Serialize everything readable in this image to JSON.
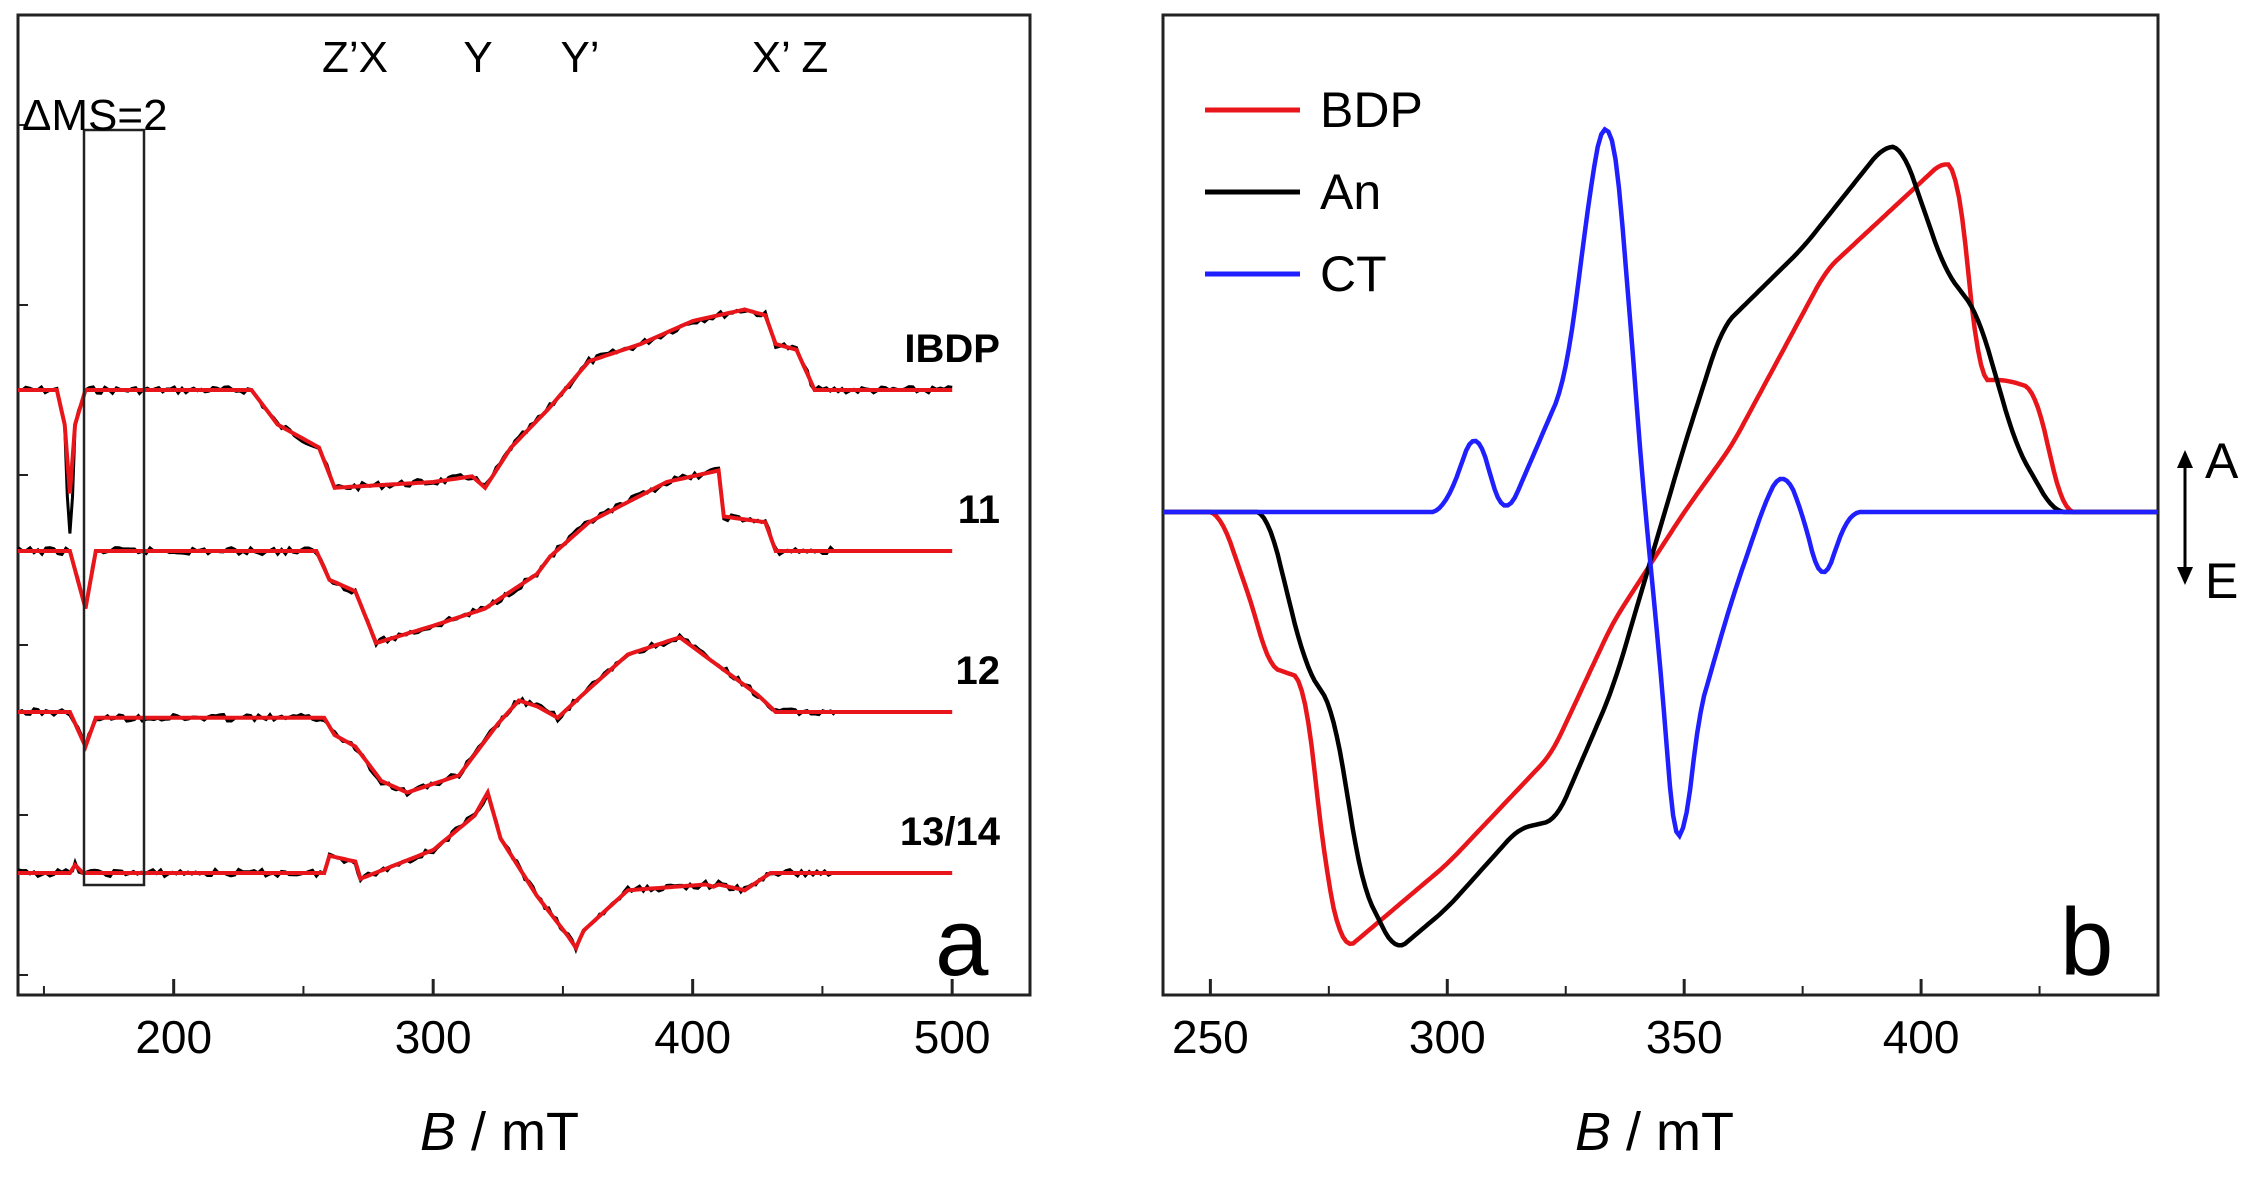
{
  "chart_data": [
    {
      "panel": "a",
      "type": "line",
      "xlabel_italic": "B",
      "xlabel_unit": " / mT",
      "xlim": [
        140,
        530
      ],
      "xticks": [
        200,
        300,
        400,
        500
      ],
      "feature_labels": [
        "Z’X",
        "Y",
        "Y’",
        "X’ Z"
      ],
      "transition_label": "ΔMS=2",
      "panel_letter": "a",
      "series": [
        {
          "name": "IBDP",
          "offset": 4.0,
          "color_exp": "#000000",
          "color_sim": "#e8161b",
          "points": [
            [
              140,
              0
            ],
            [
              155,
              0
            ],
            [
              158,
              -0.3
            ],
            [
              160,
              -0.9
            ],
            [
              162,
              -0.3
            ],
            [
              166,
              0
            ],
            [
              230,
              0
            ],
            [
              240,
              -0.3
            ],
            [
              248,
              -0.4
            ],
            [
              256,
              -0.5
            ],
            [
              262,
              -0.85
            ],
            [
              300,
              -0.8
            ],
            [
              315,
              -0.75
            ],
            [
              320,
              -0.85
            ],
            [
              330,
              -0.5
            ],
            [
              345,
              -0.15
            ],
            [
              360,
              0.25
            ],
            [
              380,
              0.4
            ],
            [
              400,
              0.6
            ],
            [
              420,
              0.7
            ],
            [
              428,
              0.65
            ],
            [
              432,
              0.4
            ],
            [
              440,
              0.35
            ],
            [
              447,
              0.0
            ],
            [
              500,
              0
            ]
          ]
        },
        {
          "name": "11",
          "offset": 2.6,
          "color_exp": "#000000",
          "color_sim": "#e8161b",
          "points": [
            [
              140,
              0
            ],
            [
              160,
              0
            ],
            [
              163,
              -0.25
            ],
            [
              166,
              -0.5
            ],
            [
              170,
              0
            ],
            [
              255,
              0
            ],
            [
              260,
              -0.25
            ],
            [
              270,
              -0.35
            ],
            [
              278,
              -0.8
            ],
            [
              300,
              -0.65
            ],
            [
              320,
              -0.5
            ],
            [
              340,
              -0.2
            ],
            [
              345,
              -0.05
            ],
            [
              360,
              0.25
            ],
            [
              390,
              0.6
            ],
            [
              410,
              0.7
            ],
            [
              412,
              0.3
            ],
            [
              428,
              0.25
            ],
            [
              432,
              0.0
            ],
            [
              500,
              0
            ]
          ]
        },
        {
          "name": "12",
          "offset": 1.2,
          "color_exp": "#000000",
          "color_sim": "#e8161b",
          "points": [
            [
              140,
              0
            ],
            [
              160,
              0
            ],
            [
              163,
              -0.15
            ],
            [
              166,
              -0.3
            ],
            [
              170,
              -0.05
            ],
            [
              258,
              -0.05
            ],
            [
              262,
              -0.2
            ],
            [
              270,
              -0.3
            ],
            [
              280,
              -0.6
            ],
            [
              290,
              -0.7
            ],
            [
              310,
              -0.55
            ],
            [
              325,
              -0.1
            ],
            [
              333,
              0.1
            ],
            [
              340,
              0.05
            ],
            [
              348,
              -0.05
            ],
            [
              360,
              0.2
            ],
            [
              375,
              0.5
            ],
            [
              395,
              0.65
            ],
            [
              410,
              0.4
            ],
            [
              425,
              0.15
            ],
            [
              432,
              0.0
            ],
            [
              500,
              0
            ]
          ]
        },
        {
          "name": "13/14",
          "offset": -0.2,
          "color_exp": "#000000",
          "color_sim": "#e8161b",
          "points": [
            [
              140,
              0
            ],
            [
              160,
              0
            ],
            [
              162,
              0.07
            ],
            [
              165,
              0
            ],
            [
              258,
              0
            ],
            [
              260,
              0.15
            ],
            [
              270,
              0.1
            ],
            [
              272,
              -0.05
            ],
            [
              300,
              0.2
            ],
            [
              316,
              0.5
            ],
            [
              321,
              0.7
            ],
            [
              326,
              0.3
            ],
            [
              340,
              -0.2
            ],
            [
              352,
              -0.55
            ],
            [
              355,
              -0.65
            ],
            [
              358,
              -0.5
            ],
            [
              375,
              -0.15
            ],
            [
              405,
              -0.1
            ],
            [
              408,
              -0.12
            ],
            [
              410,
              -0.1
            ],
            [
              420,
              -0.15
            ],
            [
              430,
              0
            ],
            [
              500,
              0
            ]
          ]
        }
      ]
    },
    {
      "panel": "b",
      "type": "line",
      "xlabel_italic": "B",
      "xlabel_unit": " / mT",
      "xlim": [
        240,
        450
      ],
      "xticks": [
        250,
        300,
        350,
        400
      ],
      "panel_letter": "b",
      "side_labels": {
        "absorption": "A",
        "emission": "E"
      },
      "series": [
        {
          "name": "BDP",
          "color": "#e8161b",
          "points": [
            [
              240,
              0
            ],
            [
              252,
              0
            ],
            [
              260,
              -0.25
            ],
            [
              262,
              -0.35
            ],
            [
              270,
              -0.38
            ],
            [
              274,
              -0.8
            ],
            [
              278,
              -1.0
            ],
            [
              300,
              -0.8
            ],
            [
              322,
              -0.55
            ],
            [
              335,
              -0.25
            ],
            [
              350,
              0
            ],
            [
              360,
              0.15
            ],
            [
              380,
              0.55
            ],
            [
              405,
              0.8
            ],
            [
              408,
              0.78
            ],
            [
              412,
              0.3
            ],
            [
              418,
              0.3
            ],
            [
              424,
              0.28
            ],
            [
              430,
              0
            ],
            [
              450,
              0
            ]
          ]
        },
        {
          "name": "An",
          "color": "#000000",
          "points": [
            [
              240,
              0
            ],
            [
              262,
              0
            ],
            [
              270,
              -0.35
            ],
            [
              276,
              -0.45
            ],
            [
              282,
              -0.85
            ],
            [
              289,
              -1.0
            ],
            [
              300,
              -0.9
            ],
            [
              315,
              -0.72
            ],
            [
              323,
              -0.7
            ],
            [
              335,
              -0.4
            ],
            [
              350,
              0.15
            ],
            [
              358,
              0.42
            ],
            [
              375,
              0.6
            ],
            [
              392,
              0.83
            ],
            [
              396,
              0.83
            ],
            [
              405,
              0.55
            ],
            [
              412,
              0.45
            ],
            [
              420,
              0.15
            ],
            [
              428,
              0
            ],
            [
              450,
              0
            ]
          ]
        },
        {
          "name": "CT",
          "color": "#1f1fff",
          "points": [
            [
              240,
              0
            ],
            [
              299,
              0
            ],
            [
              302,
              0.08
            ],
            [
              306,
              0.2
            ],
            [
              310,
              0.05
            ],
            [
              312,
              -0.02
            ],
            [
              315,
              0.05
            ],
            [
              325,
              0.3
            ],
            [
              331,
              0.8
            ],
            [
              334,
              0.95
            ],
            [
              337,
              0.7
            ],
            [
              340,
              0.2
            ],
            [
              345,
              -0.35
            ],
            [
              349,
              -0.9
            ],
            [
              352,
              -0.5
            ],
            [
              360,
              -0.2
            ],
            [
              368,
              0.05
            ],
            [
              371,
              0.1
            ],
            [
              375,
              0.0
            ],
            [
              379,
              -0.18
            ],
            [
              383,
              -0.05
            ],
            [
              385,
              0
            ],
            [
              450,
              0
            ]
          ]
        }
      ]
    }
  ]
}
